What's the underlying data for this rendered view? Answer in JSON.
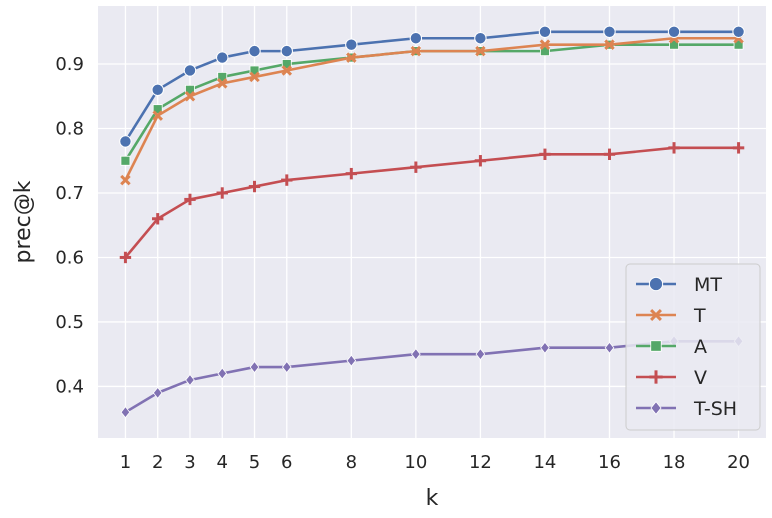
{
  "chart_data": {
    "type": "line",
    "xlabel": "k",
    "ylabel": "prec@k",
    "x": [
      1,
      2,
      3,
      4,
      5,
      6,
      8,
      10,
      12,
      14,
      16,
      18,
      20
    ],
    "xlim": [
      0.15,
      20.85
    ],
    "ylim": [
      0.32,
      0.99
    ],
    "xticks": [
      1,
      2,
      3,
      4,
      5,
      6,
      8,
      10,
      12,
      14,
      16,
      18,
      20
    ],
    "yticks": [
      0.4,
      0.5,
      0.6,
      0.7,
      0.8,
      0.9
    ],
    "ytick_labels": [
      "0.4",
      "0.5",
      "0.6",
      "0.7",
      "0.8",
      "0.9"
    ],
    "grid": true,
    "legend_position": "lower-right",
    "series": [
      {
        "name": "MT",
        "color": "#4c72b0",
        "marker": "circle",
        "values": [
          0.78,
          0.86,
          0.89,
          0.91,
          0.92,
          0.92,
          0.93,
          0.94,
          0.94,
          0.95,
          0.95,
          0.95,
          0.95
        ]
      },
      {
        "name": "T",
        "color": "#dd8452",
        "marker": "x",
        "values": [
          0.72,
          0.82,
          0.85,
          0.87,
          0.88,
          0.89,
          0.91,
          0.92,
          0.92,
          0.93,
          0.93,
          0.94,
          0.94
        ]
      },
      {
        "name": "A",
        "color": "#55a868",
        "marker": "square",
        "values": [
          0.75,
          0.83,
          0.86,
          0.88,
          0.89,
          0.9,
          0.91,
          0.92,
          0.92,
          0.92,
          0.93,
          0.93,
          0.93
        ]
      },
      {
        "name": "V",
        "color": "#c44e52",
        "marker": "plus",
        "values": [
          0.6,
          0.66,
          0.69,
          0.7,
          0.71,
          0.72,
          0.73,
          0.74,
          0.75,
          0.76,
          0.76,
          0.77,
          0.77
        ]
      },
      {
        "name": "T-SH",
        "color": "#8172b3",
        "marker": "diamond",
        "values": [
          0.36,
          0.39,
          0.41,
          0.42,
          0.43,
          0.43,
          0.44,
          0.45,
          0.45,
          0.46,
          0.46,
          0.47,
          0.47
        ]
      }
    ]
  }
}
